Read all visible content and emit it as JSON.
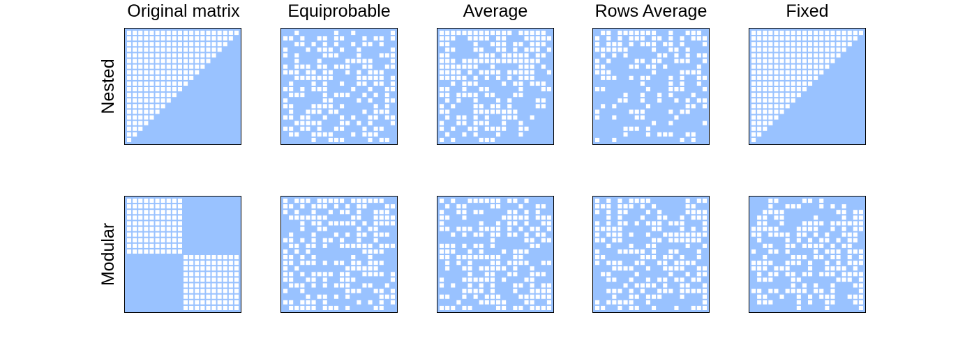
{
  "chart_data": {
    "type": "heatmap",
    "description_type": "binary matrix grid",
    "columns": [
      "Original matrix",
      "Equiprobable",
      "Average",
      "Rows Average",
      "Fixed"
    ],
    "rows": [
      "Nested",
      "Modular"
    ],
    "matrix_size": 20,
    "colors": {
      "filled": "#99c2ff",
      "empty": "#ffffff",
      "frame": "#000000"
    },
    "panels": [
      {
        "row": "Nested",
        "column": "Original matrix",
        "pattern": "nested",
        "seed": 0
      },
      {
        "row": "Nested",
        "column": "Equiprobable",
        "pattern": "random",
        "fill": 0.52,
        "seed": 11
      },
      {
        "row": "Nested",
        "column": "Average",
        "pattern": "nested-fuzzy",
        "fill": 0.5,
        "seed": 23
      },
      {
        "row": "Nested",
        "column": "Rows Average",
        "pattern": "rows-fuzzy",
        "fill": 0.5,
        "seed": 37
      },
      {
        "row": "Nested",
        "column": "Fixed",
        "pattern": "nested",
        "seed": 0
      },
      {
        "row": "Modular",
        "column": "Original matrix",
        "pattern": "modular",
        "seed": 0
      },
      {
        "row": "Modular",
        "column": "Equiprobable",
        "pattern": "random",
        "fill": 0.5,
        "seed": 53
      },
      {
        "row": "Modular",
        "column": "Average",
        "pattern": "random",
        "fill": 0.5,
        "seed": 67
      },
      {
        "row": "Modular",
        "column": "Rows Average",
        "pattern": "random",
        "fill": 0.5,
        "seed": 79
      },
      {
        "row": "Modular",
        "column": "Fixed",
        "pattern": "random",
        "fill": 0.5,
        "seed": 97
      }
    ]
  }
}
